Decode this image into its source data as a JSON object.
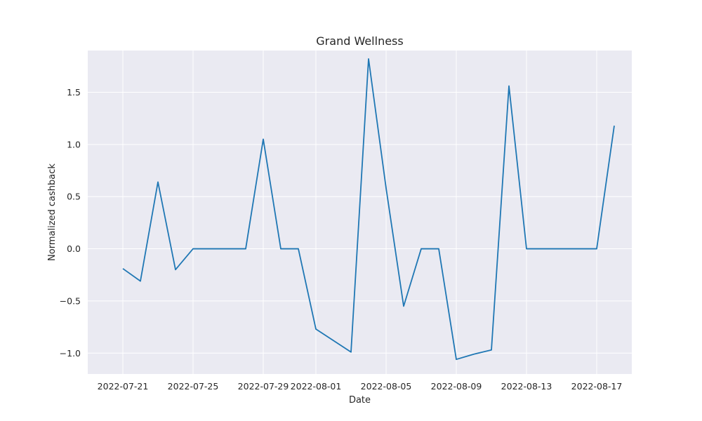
{
  "chart_data": {
    "type": "line",
    "title": "Grand Wellness",
    "xlabel": "Date",
    "ylabel": "Normalized cashback",
    "grid": true,
    "colors": {
      "background": "#eaeaf2",
      "grid": "#ffffff",
      "line": "#1f77b4"
    },
    "xlim": [
      "2022-07-19",
      "2022-08-19"
    ],
    "ylim": [
      -1.2,
      1.9
    ],
    "x_ticks": [
      "2022-07-21",
      "2022-07-25",
      "2022-07-29",
      "2022-08-01",
      "2022-08-05",
      "2022-08-09",
      "2022-08-13",
      "2022-08-17"
    ],
    "y_ticks": [
      1.5,
      1.0,
      0.5,
      0.0,
      -0.5,
      -1.0
    ],
    "y_tick_labels": [
      "1.5",
      "1.0",
      "0.5",
      "0.0",
      "−0.5",
      "−1.0"
    ],
    "series": [
      {
        "x": [
          "2022-07-21",
          "2022-07-22",
          "2022-07-23",
          "2022-07-24",
          "2022-07-25",
          "2022-07-26",
          "2022-07-27",
          "2022-07-28",
          "2022-07-29",
          "2022-07-30",
          "2022-07-31",
          "2022-08-01",
          "2022-08-02",
          "2022-08-03",
          "2022-08-04",
          "2022-08-05",
          "2022-08-06",
          "2022-08-07",
          "2022-08-08",
          "2022-08-09",
          "2022-08-10",
          "2022-08-11",
          "2022-08-12",
          "2022-08-13",
          "2022-08-14",
          "2022-08-15",
          "2022-08-16",
          "2022-08-17",
          "2022-08-18"
        ],
        "values": [
          -0.19,
          -0.31,
          0.64,
          -0.2,
          0.0,
          0.0,
          0.0,
          0.0,
          1.05,
          0.0,
          0.0,
          -0.77,
          -0.88,
          -0.99,
          1.82,
          0.58,
          -0.55,
          0.0,
          0.0,
          -1.06,
          -1.01,
          -0.97,
          1.56,
          0.0,
          0.0,
          0.0,
          0.0,
          0.0,
          1.18
        ]
      }
    ]
  }
}
